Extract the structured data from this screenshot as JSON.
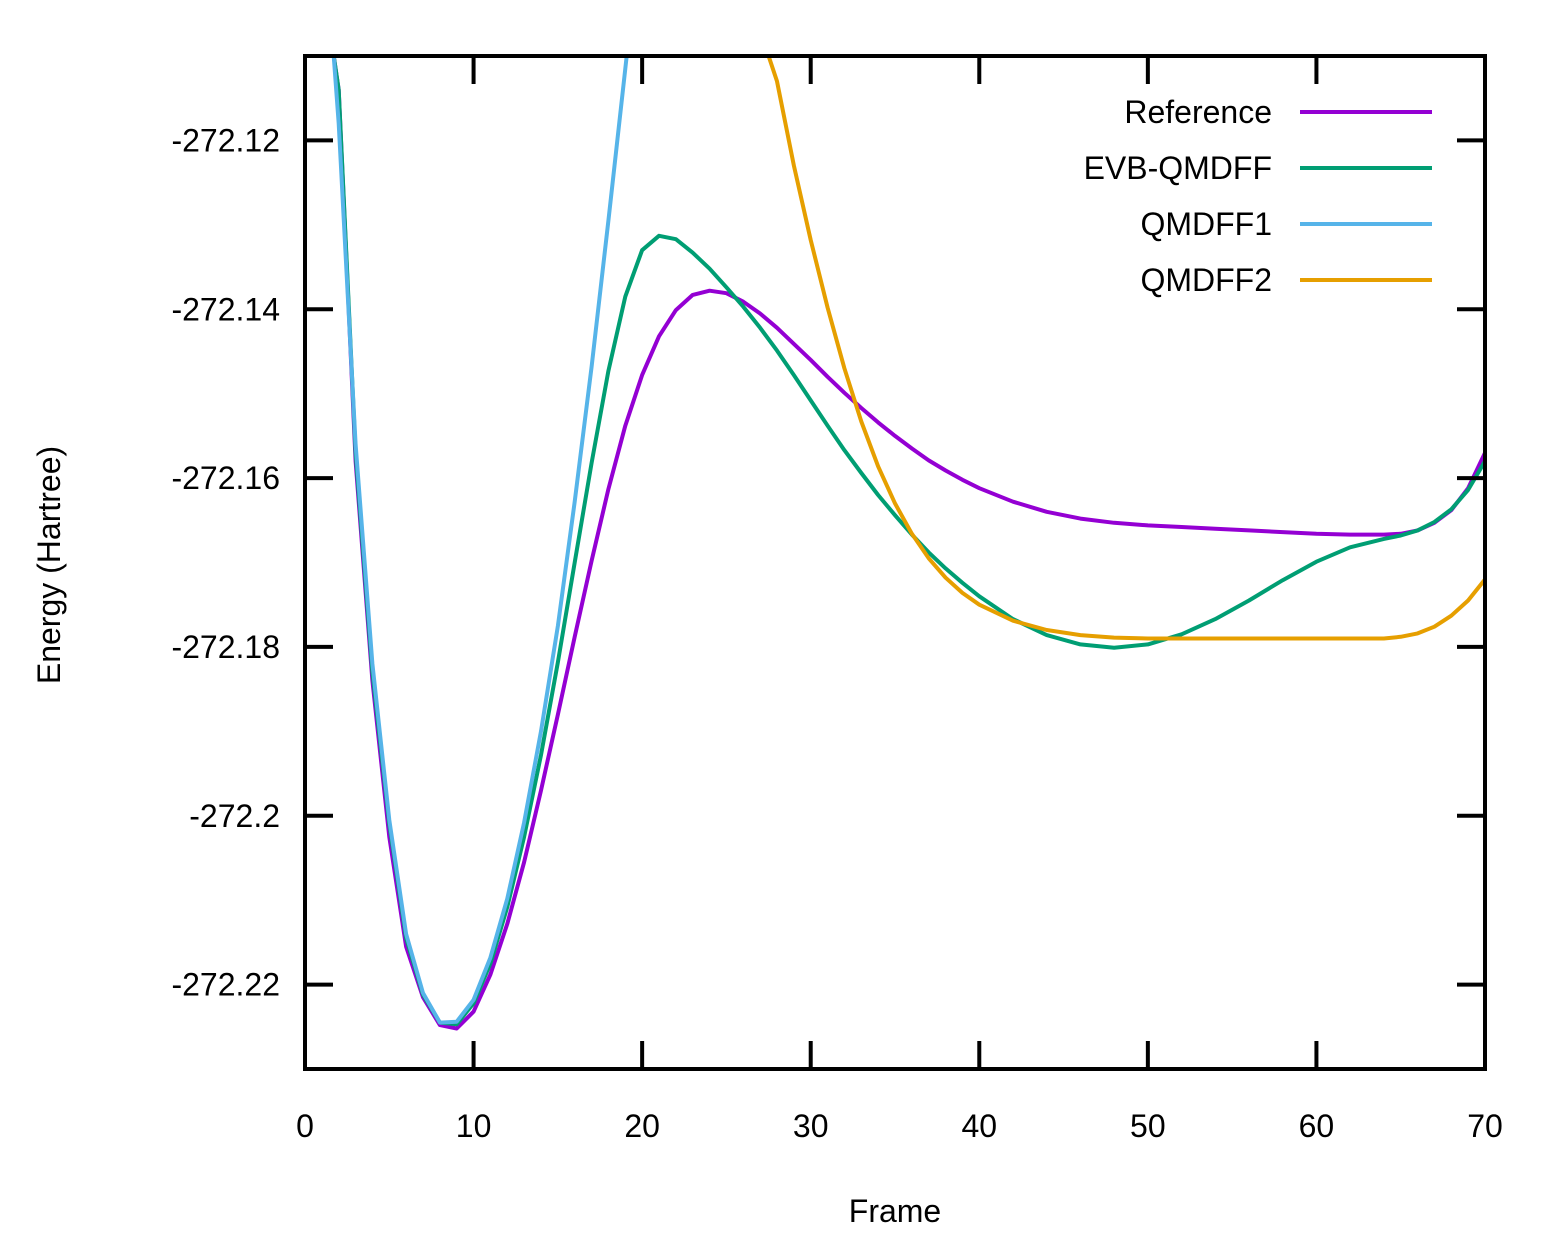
{
  "chart_data": {
    "type": "line",
    "title": "",
    "xlabel": "Frame",
    "ylabel": "Energy (Hartree)",
    "xlim": [
      0,
      70
    ],
    "ylim": [
      -272.23,
      -272.11
    ],
    "xticks": [
      0,
      10,
      20,
      30,
      40,
      50,
      60,
      70
    ],
    "yticks": [
      -272.22,
      -272.2,
      -272.18,
      -272.16,
      -272.14,
      -272.12
    ],
    "xtick_labels": [
      "0",
      "10",
      "20",
      "30",
      "40",
      "50",
      "60",
      "70"
    ],
    "ytick_labels": [
      "-272.22",
      "-272.2",
      "-272.18",
      "-272.16",
      "-272.14",
      "-272.12"
    ],
    "grid": false,
    "legend_position": "top-right",
    "series": [
      {
        "name": "Reference",
        "color": "#9400d3",
        "points": [
          [
            1.7,
            -272.11
          ],
          [
            2,
            -272.114
          ],
          [
            3,
            -272.158
          ],
          [
            4,
            -272.184
          ],
          [
            5,
            -272.2025
          ],
          [
            6,
            -272.2155
          ],
          [
            7,
            -272.2215
          ],
          [
            8,
            -272.2248
          ],
          [
            9,
            -272.2252
          ],
          [
            10,
            -272.2232
          ],
          [
            11,
            -272.2188
          ],
          [
            12,
            -272.2128
          ],
          [
            13,
            -272.2055
          ],
          [
            14,
            -272.197
          ],
          [
            15,
            -272.188
          ],
          [
            16,
            -272.1788
          ],
          [
            17,
            -272.1698
          ],
          [
            18,
            -272.1613
          ],
          [
            19,
            -272.1538
          ],
          [
            20,
            -272.1478
          ],
          [
            21,
            -272.1432
          ],
          [
            22,
            -272.1401
          ],
          [
            23,
            -272.1383
          ],
          [
            24,
            -272.1378
          ],
          [
            25,
            -272.1381
          ],
          [
            26,
            -272.1391
          ],
          [
            27,
            -272.1405
          ],
          [
            28,
            -272.1422
          ],
          [
            29,
            -272.1441
          ],
          [
            30,
            -272.146
          ],
          [
            31,
            -272.148
          ],
          [
            32,
            -272.1499
          ],
          [
            33,
            -272.1517
          ],
          [
            34,
            -272.1534
          ],
          [
            35,
            -272.155
          ],
          [
            36,
            -272.1565
          ],
          [
            37,
            -272.1579
          ],
          [
            38,
            -272.1591
          ],
          [
            39,
            -272.1602
          ],
          [
            40,
            -272.1612
          ],
          [
            42,
            -272.1628
          ],
          [
            44,
            -272.164
          ],
          [
            46,
            -272.1648
          ],
          [
            48,
            -272.1653
          ],
          [
            50,
            -272.1656
          ],
          [
            52,
            -272.1658
          ],
          [
            54,
            -272.166
          ],
          [
            56,
            -272.1662
          ],
          [
            58,
            -272.1664
          ],
          [
            60,
            -272.1666
          ],
          [
            62,
            -272.1667
          ],
          [
            64,
            -272.1667
          ],
          [
            65,
            -272.1666
          ],
          [
            66,
            -272.1662
          ],
          [
            67,
            -272.1653
          ],
          [
            68,
            -272.1638
          ],
          [
            69,
            -272.1612
          ],
          [
            70,
            -272.157
          ]
        ]
      },
      {
        "name": "EVB-QMDFF",
        "color": "#009e73",
        "points": [
          [
            1.7,
            -272.11
          ],
          [
            2,
            -272.114
          ],
          [
            3,
            -272.157
          ],
          [
            4,
            -272.183
          ],
          [
            5,
            -272.201
          ],
          [
            6,
            -272.2145
          ],
          [
            7,
            -272.2212
          ],
          [
            8,
            -272.2245
          ],
          [
            9,
            -272.2247
          ],
          [
            10,
            -272.2222
          ],
          [
            11,
            -272.2175
          ],
          [
            12,
            -272.2108
          ],
          [
            13,
            -272.2025
          ],
          [
            14,
            -272.1928
          ],
          [
            15,
            -272.1818
          ],
          [
            16,
            -272.17
          ],
          [
            17,
            -272.1582
          ],
          [
            18,
            -272.1473
          ],
          [
            19,
            -272.1385
          ],
          [
            20,
            -272.133
          ],
          [
            21,
            -272.1313
          ],
          [
            22,
            -272.1317
          ],
          [
            23,
            -272.1333
          ],
          [
            24,
            -272.1352
          ],
          [
            25,
            -272.1374
          ],
          [
            26,
            -272.1397
          ],
          [
            27,
            -272.1422
          ],
          [
            28,
            -272.1449
          ],
          [
            29,
            -272.1478
          ],
          [
            30,
            -272.1508
          ],
          [
            31,
            -272.1538
          ],
          [
            32,
            -272.1567
          ],
          [
            33,
            -272.1594
          ],
          [
            34,
            -272.162
          ],
          [
            35,
            -272.1644
          ],
          [
            36,
            -272.1667
          ],
          [
            37,
            -272.1688
          ],
          [
            38,
            -272.1707
          ],
          [
            39,
            -272.1724
          ],
          [
            40,
            -272.174
          ],
          [
            42,
            -272.1767
          ],
          [
            44,
            -272.1786
          ],
          [
            46,
            -272.1797
          ],
          [
            48,
            -272.1801
          ],
          [
            50,
            -272.1797
          ],
          [
            52,
            -272.1785
          ],
          [
            54,
            -272.1767
          ],
          [
            56,
            -272.1745
          ],
          [
            58,
            -272.1721
          ],
          [
            60,
            -272.1699
          ],
          [
            62,
            -272.1682
          ],
          [
            64,
            -272.1672
          ],
          [
            65,
            -272.1668
          ],
          [
            66,
            -272.1662
          ],
          [
            67,
            -272.1652
          ],
          [
            68,
            -272.1637
          ],
          [
            69,
            -272.1614
          ],
          [
            70,
            -272.158
          ]
        ]
      },
      {
        "name": "QMDFF1",
        "color": "#56b4e9",
        "points": [
          [
            1.7,
            -272.11
          ],
          [
            2,
            -272.118
          ],
          [
            3,
            -272.156
          ],
          [
            4,
            -272.182
          ],
          [
            5,
            -272.2005
          ],
          [
            6,
            -272.214
          ],
          [
            7,
            -272.221
          ],
          [
            8,
            -272.2245
          ],
          [
            9,
            -272.2244
          ],
          [
            10,
            -272.2218
          ],
          [
            11,
            -272.2168
          ],
          [
            12,
            -272.2098
          ],
          [
            13,
            -272.2008
          ],
          [
            14,
            -272.19
          ],
          [
            15,
            -272.1775
          ],
          [
            16,
            -272.1628
          ],
          [
            17,
            -272.1468
          ],
          [
            18,
            -272.1295
          ],
          [
            19,
            -272.1115
          ],
          [
            19.8,
            -272.097
          ]
        ]
      },
      {
        "name": "QMDFF2",
        "color": "#e69f00",
        "points": [
          [
            27.5,
            -272.11
          ],
          [
            28,
            -272.113
          ],
          [
            29,
            -272.123
          ],
          [
            30,
            -272.1318
          ],
          [
            31,
            -272.1398
          ],
          [
            32,
            -272.147
          ],
          [
            33,
            -272.1533
          ],
          [
            34,
            -272.1586
          ],
          [
            35,
            -272.163
          ],
          [
            36,
            -272.1666
          ],
          [
            37,
            -272.1695
          ],
          [
            38,
            -272.1718
          ],
          [
            39,
            -272.1736
          ],
          [
            40,
            -272.175
          ],
          [
            42,
            -272.1769
          ],
          [
            44,
            -272.178
          ],
          [
            46,
            -272.1786
          ],
          [
            48,
            -272.1789
          ],
          [
            50,
            -272.179
          ],
          [
            52,
            -272.179
          ],
          [
            54,
            -272.179
          ],
          [
            56,
            -272.179
          ],
          [
            58,
            -272.179
          ],
          [
            60,
            -272.179
          ],
          [
            62,
            -272.179
          ],
          [
            64,
            -272.179
          ],
          [
            65,
            -272.1788
          ],
          [
            66,
            -272.1784
          ],
          [
            67,
            -272.1776
          ],
          [
            68,
            -272.1763
          ],
          [
            69,
            -272.1745
          ],
          [
            70,
            -272.172
          ]
        ]
      }
    ]
  }
}
